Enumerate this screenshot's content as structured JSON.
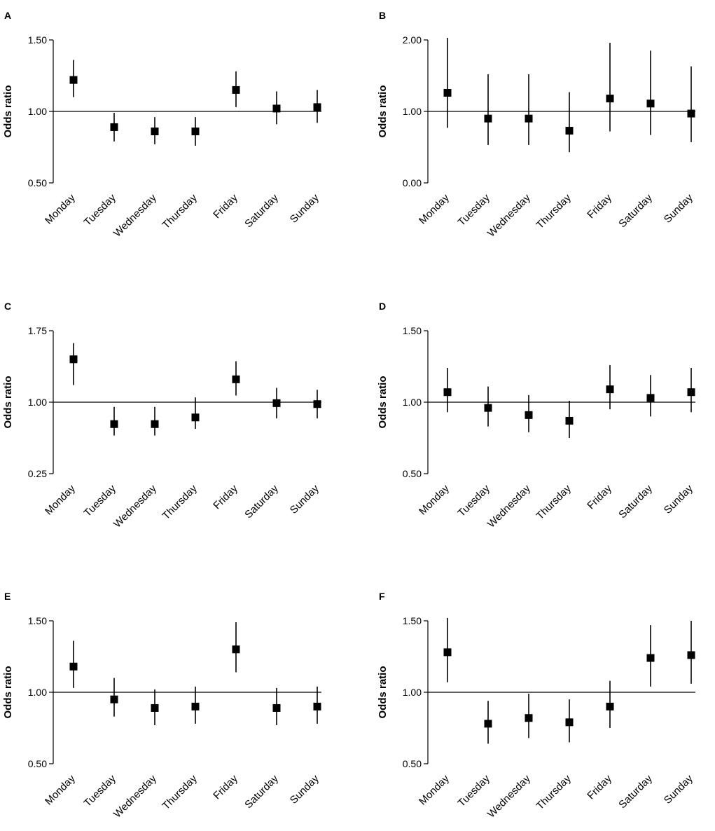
{
  "figure": {
    "name": "odds-ratio-by-weekday-panels"
  },
  "chart_data": [
    {
      "type": "scatter",
      "panel": "A",
      "title": "",
      "xlabel": "",
      "ylabel": "Odds ratio",
      "categories": [
        "Monday",
        "Tuesday",
        "Wednesday",
        "Thursday",
        "Friday",
        "Saturday",
        "Sunday"
      ],
      "yticks": [
        "0.50",
        "1.00",
        "1.50"
      ],
      "ylim": [
        0.5,
        1.5
      ],
      "reference_line": 1.0,
      "values": [
        1.22,
        0.89,
        0.86,
        0.86,
        1.15,
        1.02,
        1.03
      ],
      "ci_lower": [
        1.1,
        0.79,
        0.77,
        0.76,
        1.03,
        0.91,
        0.92
      ],
      "ci_upper": [
        1.36,
        0.99,
        0.96,
        0.96,
        1.28,
        1.14,
        1.15
      ]
    },
    {
      "type": "scatter",
      "panel": "B",
      "title": "",
      "xlabel": "",
      "ylabel": "Odds ratio",
      "categories": [
        "Monday",
        "Tuesday",
        "Wednesday",
        "Thursday",
        "Friday",
        "Saturday",
        "Sunday"
      ],
      "yticks": [
        "0.00",
        "1.00",
        "2.00"
      ],
      "ylim": [
        0.0,
        2.0
      ],
      "reference_line": 1.0,
      "values": [
        1.26,
        0.9,
        0.9,
        0.73,
        1.18,
        1.11,
        0.97
      ],
      "ci_lower": [
        0.77,
        0.53,
        0.53,
        0.43,
        0.72,
        0.67,
        0.57
      ],
      "ci_upper": [
        2.03,
        1.52,
        1.52,
        1.27,
        1.96,
        1.85,
        1.63
      ]
    },
    {
      "type": "scatter",
      "panel": "C",
      "title": "",
      "xlabel": "",
      "ylabel": "Odds ratio",
      "categories": [
        "Monday",
        "Tuesday",
        "Wednesday",
        "Thursday",
        "Friday",
        "Saturday",
        "Sunday"
      ],
      "yticks": [
        "0.25",
        "1.00",
        "1.75"
      ],
      "ylim": [
        0.25,
        1.75
      ],
      "reference_line": 1.0,
      "values": [
        1.45,
        0.77,
        0.77,
        0.84,
        1.24,
        0.99,
        0.98
      ],
      "ci_lower": [
        1.18,
        0.65,
        0.65,
        0.72,
        1.07,
        0.83,
        0.83
      ],
      "ci_upper": [
        1.62,
        0.95,
        0.95,
        1.05,
        1.43,
        1.15,
        1.13
      ]
    },
    {
      "type": "scatter",
      "panel": "D",
      "title": "",
      "xlabel": "",
      "ylabel": "Odds ratio",
      "categories": [
        "Monday",
        "Tuesday",
        "Wednesday",
        "Thursday",
        "Friday",
        "Saturday",
        "Sunday"
      ],
      "yticks": [
        "0.50",
        "1.00",
        "1.50"
      ],
      "ylim": [
        0.5,
        1.5
      ],
      "reference_line": 1.0,
      "values": [
        1.07,
        0.96,
        0.91,
        0.87,
        1.09,
        1.03,
        1.07
      ],
      "ci_lower": [
        0.93,
        0.83,
        0.79,
        0.75,
        0.95,
        0.9,
        0.93
      ],
      "ci_upper": [
        1.24,
        1.11,
        1.05,
        1.01,
        1.26,
        1.19,
        1.24
      ]
    },
    {
      "type": "scatter",
      "panel": "E",
      "title": "",
      "xlabel": "",
      "ylabel": "Odds ratio",
      "categories": [
        "Monday",
        "Tuesday",
        "Wednesday",
        "Thursday",
        "Friday",
        "Saturday",
        "Sunday"
      ],
      "yticks": [
        "0.50",
        "1.00",
        "1.50"
      ],
      "ylim": [
        0.5,
        1.5
      ],
      "reference_line": 1.0,
      "values": [
        1.18,
        0.95,
        0.89,
        0.9,
        1.3,
        0.89,
        0.9
      ],
      "ci_lower": [
        1.03,
        0.83,
        0.77,
        0.78,
        1.14,
        0.77,
        0.78
      ],
      "ci_upper": [
        1.36,
        1.1,
        1.02,
        1.04,
        1.49,
        1.03,
        1.04
      ]
    },
    {
      "type": "scatter",
      "panel": "F",
      "title": "",
      "xlabel": "",
      "ylabel": "Odds ratio",
      "categories": [
        "Monday",
        "Tuesday",
        "Wednesday",
        "Thursday",
        "Friday",
        "Saturday",
        "Sunday"
      ],
      "yticks": [
        "0.50",
        "1.00",
        "1.50"
      ],
      "ylim": [
        0.5,
        1.5
      ],
      "reference_line": 1.0,
      "values": [
        1.28,
        0.78,
        0.82,
        0.79,
        0.9,
        1.24,
        1.26
      ],
      "ci_lower": [
        1.07,
        0.64,
        0.68,
        0.65,
        0.75,
        1.04,
        1.06
      ],
      "ci_upper": [
        1.52,
        0.94,
        0.99,
        0.95,
        1.08,
        1.47,
        1.5
      ]
    }
  ]
}
